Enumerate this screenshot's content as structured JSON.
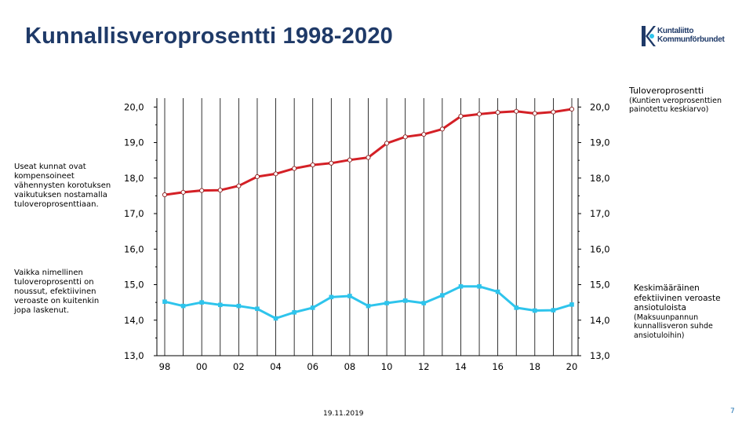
{
  "title": "Kunnallisveroprosentti 1998-2020",
  "logo": {
    "line1": "Kuntaliitto",
    "line2": "Kommunförbundet"
  },
  "legend_top": {
    "lead": "Tuloveroprosentti",
    "sub": "(Kuntien veroprosenttien painotettu keskiarvo)"
  },
  "legend_bottom": {
    "lead": "Keskimääräinen efektiivinen veroaste ansiotuloista",
    "sub": "(Maksuunpannun kunnallisveron suhde ansiotuloihin)"
  },
  "side_note_1": "Useat kunnat ovat kompensoineet vähennysten korotuksen vaikutuksen nostamalla tuloveroprosenttiaan.",
  "side_note_2": "Vaikka nimellinen tuloveroprosentti on noussut, efektiivinen veroaste on kuitenkin jopa laskenut.",
  "footer_date": "19.11.2019",
  "page_number": "7",
  "colors": {
    "nominal": "#d42026",
    "effective": "#2ec4ec",
    "title": "#1f3a68",
    "axis": "#000000"
  },
  "chart_data": {
    "type": "line",
    "title": "Kunnallisveroprosentti 1998-2020",
    "x": [
      1998,
      1999,
      2000,
      2001,
      2002,
      2003,
      2004,
      2005,
      2006,
      2007,
      2008,
      2009,
      2010,
      2011,
      2012,
      2013,
      2014,
      2015,
      2016,
      2017,
      2018,
      2019,
      2020
    ],
    "x_tick_labels": [
      "98",
      "00",
      "02",
      "04",
      "06",
      "08",
      "10",
      "12",
      "14",
      "16",
      "18",
      "20"
    ],
    "x_tick_years": [
      1998,
      2000,
      2002,
      2004,
      2006,
      2008,
      2010,
      2012,
      2014,
      2016,
      2018,
      2020
    ],
    "y_tick_labels": [
      "13,0",
      "14,0",
      "15,0",
      "16,0",
      "17,0",
      "18,0",
      "19,0",
      "20,0"
    ],
    "y_tick_values": [
      13,
      14,
      15,
      16,
      17,
      18,
      19,
      20
    ],
    "ylim": [
      13,
      20.25
    ],
    "xlim": [
      1998,
      2020
    ],
    "grid": "vertical",
    "series": [
      {
        "name": "Tuloveroprosentti",
        "color": "#d42026",
        "marker": "hollow-circle",
        "values": [
          17.53,
          17.6,
          17.65,
          17.66,
          17.78,
          18.04,
          18.12,
          18.27,
          18.37,
          18.42,
          18.51,
          18.58,
          18.98,
          19.16,
          19.23,
          19.38,
          19.74,
          19.8,
          19.85,
          19.88,
          19.82,
          19.86,
          19.94
        ]
      },
      {
        "name": "Keskimääräinen efektiivinen veroaste ansiotuloista",
        "color": "#2ec4ec",
        "marker": "filled-square",
        "values": [
          14.52,
          14.4,
          14.5,
          14.43,
          14.4,
          14.32,
          14.05,
          14.22,
          14.35,
          14.65,
          14.68,
          14.4,
          14.48,
          14.55,
          14.48,
          14.7,
          14.95,
          14.95,
          14.8,
          14.35,
          14.27,
          14.28,
          14.44
        ]
      }
    ]
  }
}
